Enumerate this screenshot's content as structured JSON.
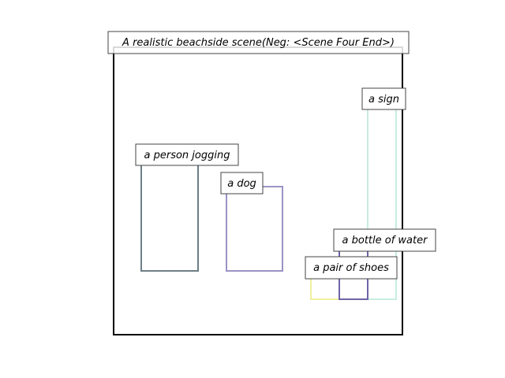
{
  "diagram": {
    "title": "A realistic beachside scene(Neg: <Scene Four End>)",
    "frame_color": "#000000",
    "boxes": [
      {
        "label": "a sign",
        "color": "#c8ece0"
      },
      {
        "label": "a person jogging",
        "color": "#6e7f86"
      },
      {
        "label": "a dog",
        "color": "#9b93c4"
      },
      {
        "label": "a bottle of water",
        "color": "#6e63a8"
      },
      {
        "label": "a pair of shoes",
        "color": "#eef0a0"
      }
    ]
  }
}
